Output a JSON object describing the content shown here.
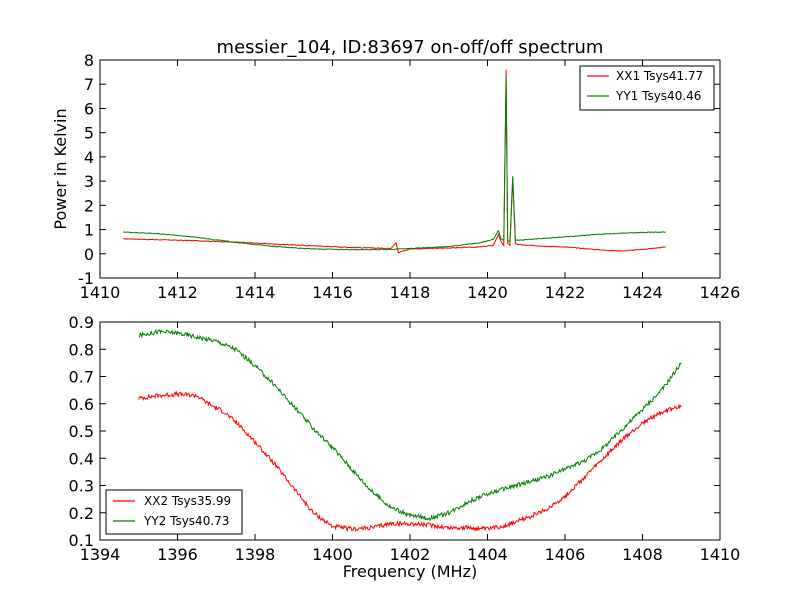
{
  "chart_data": [
    {
      "type": "line",
      "title": "messier_104, ID:83697 on-off/off spectrum",
      "xlabel": "",
      "ylabel": "Power in Kelvin",
      "xlim": [
        1410,
        1426
      ],
      "ylim": [
        -1,
        8
      ],
      "xticks": [
        1410,
        1412,
        1414,
        1416,
        1418,
        1420,
        1422,
        1424,
        1426
      ],
      "yticks": [
        -1,
        0,
        1,
        2,
        3,
        4,
        5,
        6,
        7,
        8
      ],
      "grid": false,
      "legend": "top-right",
      "series": [
        {
          "name": "XX1 Tsys41.77",
          "color": "#ff0000",
          "points": [
            [
              1410.6,
              0.62
            ],
            [
              1411.5,
              0.58
            ],
            [
              1412.5,
              0.54
            ],
            [
              1413.5,
              0.48
            ],
            [
              1414.5,
              0.4
            ],
            [
              1415.5,
              0.33
            ],
            [
              1416.5,
              0.26
            ],
            [
              1417.5,
              0.22
            ],
            [
              1417.64,
              0.45
            ],
            [
              1417.7,
              0.05
            ],
            [
              1418,
              0.2
            ],
            [
              1419,
              0.24
            ],
            [
              1419.8,
              0.28
            ],
            [
              1420.15,
              0.35
            ],
            [
              1420.28,
              0.8
            ],
            [
              1420.35,
              0.5
            ],
            [
              1420.42,
              0.35
            ],
            [
              1420.48,
              7.6
            ],
            [
              1420.52,
              0.45
            ],
            [
              1420.58,
              0.35
            ],
            [
              1420.65,
              3.1
            ],
            [
              1420.72,
              0.4
            ],
            [
              1421,
              0.35
            ],
            [
              1422,
              0.28
            ],
            [
              1423,
              0.15
            ],
            [
              1423.5,
              0.12
            ],
            [
              1424,
              0.18
            ],
            [
              1424.6,
              0.28
            ]
          ]
        },
        {
          "name": "YY1 Tsys40.46",
          "color": "#008000",
          "points": [
            [
              1410.6,
              0.9
            ],
            [
              1411.5,
              0.83
            ],
            [
              1412.5,
              0.68
            ],
            [
              1413.5,
              0.47
            ],
            [
              1414.5,
              0.3
            ],
            [
              1415.5,
              0.2
            ],
            [
              1416.5,
              0.17
            ],
            [
              1417.5,
              0.18
            ],
            [
              1418,
              0.22
            ],
            [
              1419,
              0.3
            ],
            [
              1419.8,
              0.45
            ],
            [
              1420.15,
              0.6
            ],
            [
              1420.28,
              0.95
            ],
            [
              1420.35,
              0.62
            ],
            [
              1420.42,
              0.55
            ],
            [
              1420.48,
              7.3
            ],
            [
              1420.52,
              0.55
            ],
            [
              1420.58,
              0.5
            ],
            [
              1420.65,
              3.2
            ],
            [
              1420.72,
              0.55
            ],
            [
              1421,
              0.58
            ],
            [
              1422,
              0.7
            ],
            [
              1423,
              0.82
            ],
            [
              1424,
              0.88
            ],
            [
              1424.6,
              0.9
            ]
          ]
        }
      ]
    },
    {
      "type": "line",
      "title": "",
      "xlabel": "Frequency (MHz)",
      "ylabel": "",
      "xlim": [
        1394,
        1410
      ],
      "ylim": [
        0.1,
        0.9
      ],
      "xticks": [
        1394,
        1396,
        1398,
        1400,
        1402,
        1404,
        1406,
        1408,
        1410
      ],
      "yticks": [
        0.1,
        0.2,
        0.3,
        0.4,
        0.5,
        0.6,
        0.7,
        0.8,
        0.9
      ],
      "grid": false,
      "legend": "bottom-left",
      "series": [
        {
          "name": "XX2 Tsys35.99",
          "color": "#ff0000",
          "points": [
            [
              1395,
              0.62
            ],
            [
              1395.5,
              0.63
            ],
            [
              1396,
              0.635
            ],
            [
              1396.5,
              0.63
            ],
            [
              1396.8,
              0.6
            ],
            [
              1397.2,
              0.57
            ],
            [
              1397.6,
              0.52
            ],
            [
              1398,
              0.46
            ],
            [
              1398.5,
              0.38
            ],
            [
              1399,
              0.29
            ],
            [
              1399.5,
              0.2
            ],
            [
              1400,
              0.15
            ],
            [
              1400.5,
              0.14
            ],
            [
              1401,
              0.145
            ],
            [
              1401.5,
              0.16
            ],
            [
              1402,
              0.16
            ],
            [
              1402.5,
              0.155
            ],
            [
              1403,
              0.145
            ],
            [
              1403.5,
              0.145
            ],
            [
              1404,
              0.14
            ],
            [
              1404.5,
              0.155
            ],
            [
              1405,
              0.18
            ],
            [
              1405.5,
              0.21
            ],
            [
              1406,
              0.26
            ],
            [
              1406.5,
              0.33
            ],
            [
              1407,
              0.4
            ],
            [
              1407.5,
              0.47
            ],
            [
              1408,
              0.53
            ],
            [
              1408.5,
              0.57
            ],
            [
              1409,
              0.59
            ]
          ]
        },
        {
          "name": "YY2 Tsys40.73",
          "color": "#008000",
          "points": [
            [
              1395,
              0.85
            ],
            [
              1395.5,
              0.865
            ],
            [
              1396,
              0.86
            ],
            [
              1396.5,
              0.845
            ],
            [
              1397,
              0.83
            ],
            [
              1397.5,
              0.8
            ],
            [
              1398,
              0.74
            ],
            [
              1398.5,
              0.67
            ],
            [
              1399,
              0.59
            ],
            [
              1399.5,
              0.51
            ],
            [
              1400,
              0.44
            ],
            [
              1400.5,
              0.36
            ],
            [
              1401,
              0.28
            ],
            [
              1401.5,
              0.22
            ],
            [
              1402,
              0.19
            ],
            [
              1402.5,
              0.18
            ],
            [
              1403,
              0.2
            ],
            [
              1403.5,
              0.24
            ],
            [
              1404,
              0.27
            ],
            [
              1404.5,
              0.29
            ],
            [
              1405,
              0.31
            ],
            [
              1405.5,
              0.33
            ],
            [
              1406,
              0.36
            ],
            [
              1406.5,
              0.39
            ],
            [
              1407,
              0.44
            ],
            [
              1407.5,
              0.51
            ],
            [
              1408,
              0.58
            ],
            [
              1408.5,
              0.65
            ],
            [
              1409,
              0.75
            ]
          ]
        }
      ]
    }
  ]
}
